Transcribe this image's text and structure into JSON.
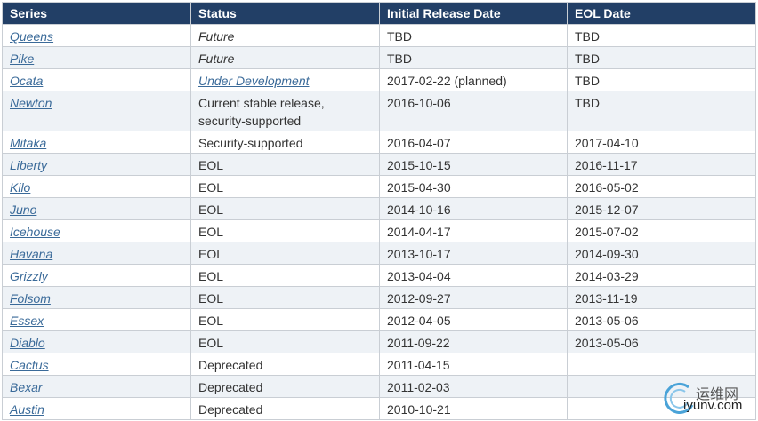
{
  "table": {
    "header": [
      "Series",
      "Status",
      "Initial Release Date",
      "EOL Date"
    ],
    "rows": [
      [
        "Queens",
        "Future",
        "TBD",
        "TBD"
      ],
      [
        "Pike",
        "Future",
        "TBD",
        "TBD"
      ],
      [
        "Ocata",
        "Under Development",
        "2017-02-22 (planned)",
        "TBD"
      ],
      [
        "Newton",
        "Current stable release, security-supported",
        "2016-10-06",
        "TBD"
      ],
      [
        "Mitaka",
        "Security-supported",
        "2016-04-07",
        "2017-04-10"
      ],
      [
        "Liberty",
        "EOL",
        "2015-10-15",
        "2016-11-17"
      ],
      [
        "Kilo",
        "EOL",
        "2015-04-30",
        "2016-05-02"
      ],
      [
        "Juno",
        "EOL",
        "2014-10-16",
        "2015-12-07"
      ],
      [
        "Icehouse",
        "EOL",
        "2014-04-17",
        "2015-07-02"
      ],
      [
        "Havana",
        "EOL",
        "2013-10-17",
        "2014-09-30"
      ],
      [
        "Grizzly",
        "EOL",
        "2013-04-04",
        "2014-03-29"
      ],
      [
        "Folsom",
        "EOL",
        "2012-09-27",
        "2013-11-19"
      ],
      [
        "Essex",
        "EOL",
        "2012-04-05",
        "2013-05-06"
      ],
      [
        "Diablo",
        "EOL",
        "2011-09-22",
        "2013-05-06"
      ],
      [
        "Cactus",
        "Deprecated",
        "2011-04-15"
      ],
      [
        "Bexar",
        "Deprecated",
        "2011-02-03"
      ],
      [
        "Austin",
        "Deprecated",
        "2010-10-21"
      ]
    ]
  },
  "watermark": {
    "title": "运维网",
    "url": "iyunv.com"
  }
}
